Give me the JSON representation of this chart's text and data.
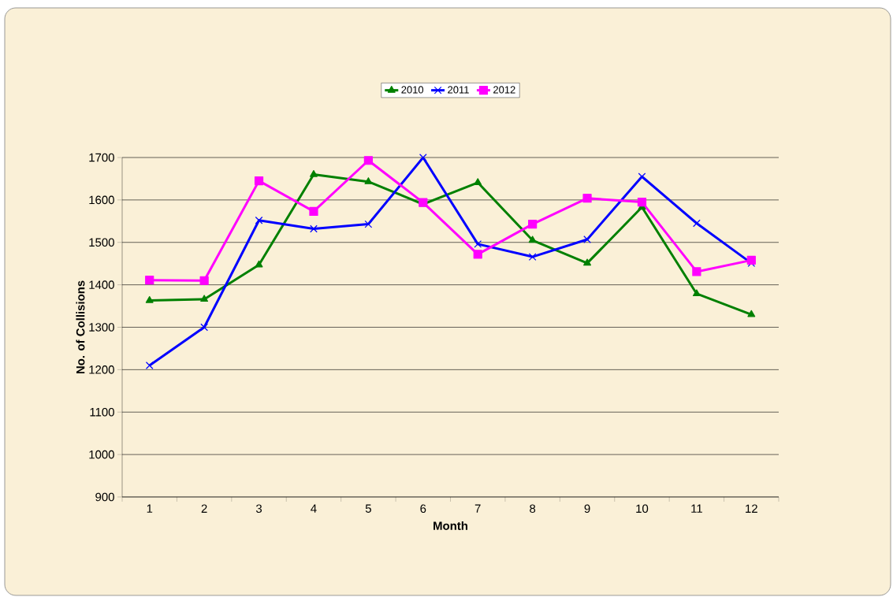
{
  "chart_data": {
    "type": "line",
    "xlabel": "Month",
    "ylabel": "No. of Collisions",
    "categories": [
      "1",
      "2",
      "3",
      "4",
      "5",
      "6",
      "7",
      "8",
      "9",
      "10",
      "11",
      "12"
    ],
    "series": [
      {
        "name": "2010",
        "color": "#008000",
        "marker": "triangle",
        "values": [
          1363,
          1366,
          1447,
          1660,
          1643,
          1590,
          1641,
          1505,
          1451,
          1583,
          1379,
          1330
        ]
      },
      {
        "name": "2011",
        "color": "#0000ff",
        "marker": "cross",
        "values": [
          1210,
          1300,
          1552,
          1532,
          1543,
          1700,
          1496,
          1466,
          1507,
          1655,
          1545,
          1451
        ]
      },
      {
        "name": "2012",
        "color": "#ff00ff",
        "marker": "square",
        "values": [
          1411,
          1410,
          1645,
          1573,
          1693,
          1594,
          1472,
          1543,
          1604,
          1595,
          1431,
          1458
        ]
      }
    ],
    "ylim": [
      900,
      1700
    ],
    "yticks": [
      900,
      1000,
      1100,
      1200,
      1300,
      1400,
      1500,
      1600,
      1700
    ],
    "grid": "y",
    "legend": "top",
    "line_style": "solid"
  }
}
